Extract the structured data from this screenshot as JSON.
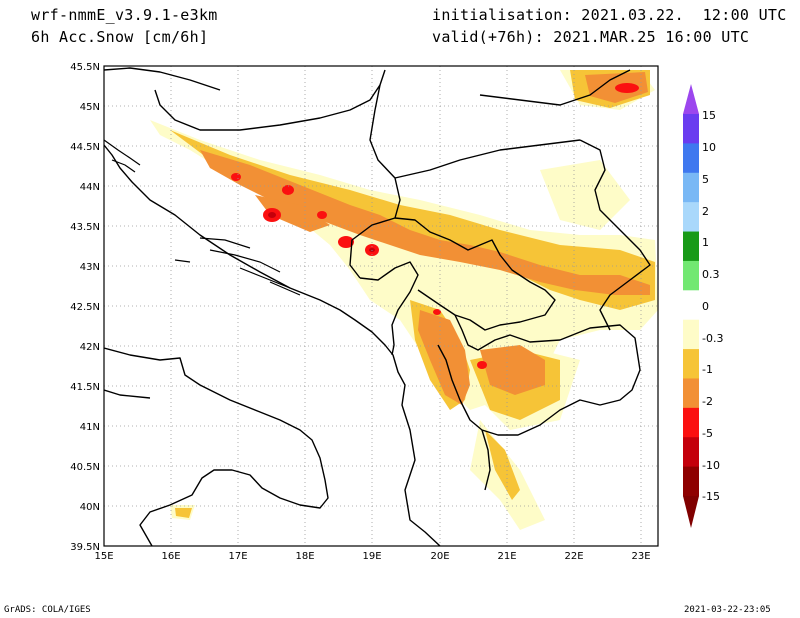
{
  "header": {
    "model": "wrf-nmmE_v3.9.1-e3km",
    "variable": "6h Acc.Snow [cm/6h]",
    "initialisation": "initialisation: 2021.03.22.  12:00 UTC",
    "valid": "valid(+76h): 2021.MAR.25 16:00 UTC"
  },
  "map": {
    "lon_range": [
      15,
      23.25
    ],
    "lat_range": [
      39.5,
      45.5
    ],
    "lat_labels": [
      "45.5N",
      "45N",
      "44.5N",
      "44N",
      "43.5N",
      "43N",
      "42.5N",
      "42N",
      "41.5N",
      "41N",
      "40.5N",
      "40N",
      "39.5N"
    ],
    "lon_labels": [
      "15E",
      "16E",
      "17E",
      "18E",
      "19E",
      "20E",
      "21E",
      "22E",
      "23E"
    ],
    "grid": true
  },
  "legend": {
    "labels": [
      "15",
      "10",
      "5",
      "2",
      "1",
      "0.3",
      "0",
      "-0.3",
      "-1",
      "-2",
      "-5",
      "-10",
      "-15"
    ],
    "colors": [
      "#6a3cf0",
      "#3f78ef",
      "#79b8f5",
      "#a9d8fb",
      "#189a18",
      "#72e872",
      "#ffffff",
      "#fefcc8",
      "#f6c437",
      "#f29035",
      "#fb1010",
      "#c4000b",
      "#8e0000"
    ],
    "top_arrow_color": "#9c46ee",
    "bottom_arrow_color": "#800000"
  },
  "footer": {
    "left": "GrADS: COLA/IGES",
    "right": "2021-03-22-23:05"
  }
}
